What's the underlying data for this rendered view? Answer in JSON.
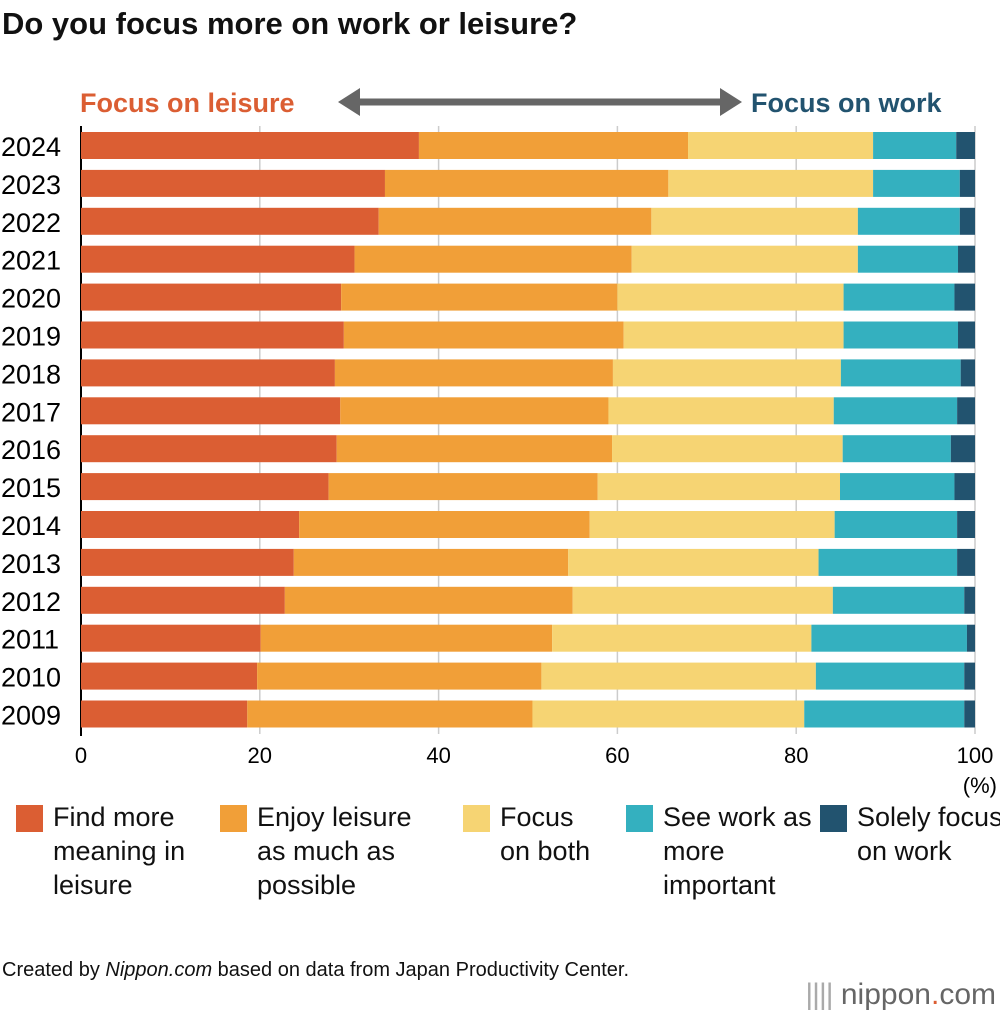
{
  "title": "Do you focus more on work or leisure?",
  "header": {
    "left": "Focus on leisure",
    "right": "Focus on work"
  },
  "footer": {
    "prefix": "Created by ",
    "source_site": "Nippon.com",
    "suffix": " based on data from Japan Productivity Center."
  },
  "logo": "nippon.com",
  "chart_data": {
    "type": "bar",
    "orientation": "horizontal-stacked",
    "xlabel": "(%)",
    "xlim": [
      0,
      100
    ],
    "xticks": [
      "0",
      "20",
      "40",
      "60",
      "80",
      "100"
    ],
    "grid": true,
    "legend": "bottom",
    "categories": [
      "2024",
      "2023",
      "2022",
      "2021",
      "2020",
      "2019",
      "2018",
      "2017",
      "2016",
      "2015",
      "2014",
      "2013",
      "2012",
      "2011",
      "2010",
      "2009"
    ],
    "series": [
      {
        "name": "Find more meaning in leisure",
        "color": "#DB5E33",
        "values": [
          37.8,
          34.0,
          33.3,
          30.6,
          29.1,
          29.4,
          28.4,
          29.0,
          28.6,
          27.7,
          24.4,
          23.8,
          22.8,
          20.1,
          19.7,
          18.6
        ]
      },
      {
        "name": "Enjoy leisure as much as possible",
        "color": "#F19F38",
        "values": [
          30.1,
          31.7,
          30.5,
          31.0,
          30.9,
          31.3,
          31.1,
          30.0,
          30.8,
          30.1,
          32.5,
          30.7,
          32.2,
          32.6,
          31.8,
          31.9
        ]
      },
      {
        "name": "Focus on both",
        "color": "#F6D473",
        "values": [
          20.7,
          22.9,
          23.1,
          25.3,
          25.3,
          24.6,
          25.5,
          25.2,
          25.8,
          27.1,
          27.4,
          28.0,
          29.1,
          29.0,
          30.7,
          30.4
        ]
      },
      {
        "name": "See work as more important",
        "color": "#34B0BF",
        "values": [
          9.3,
          9.7,
          11.4,
          11.2,
          12.4,
          12.8,
          13.4,
          13.8,
          12.1,
          12.8,
          13.7,
          15.5,
          14.7,
          17.4,
          16.6,
          17.9
        ]
      },
      {
        "name": "Solely focus on work",
        "color": "#22536F",
        "values": [
          2.1,
          1.7,
          1.7,
          1.9,
          2.3,
          1.9,
          1.6,
          2.0,
          2.7,
          2.3,
          2.0,
          2.0,
          1.2,
          0.9,
          1.2,
          1.2
        ]
      }
    ]
  },
  "colors": {
    "leisure": "#DB5E33",
    "work": "#22536F",
    "arrow": "#666666"
  }
}
